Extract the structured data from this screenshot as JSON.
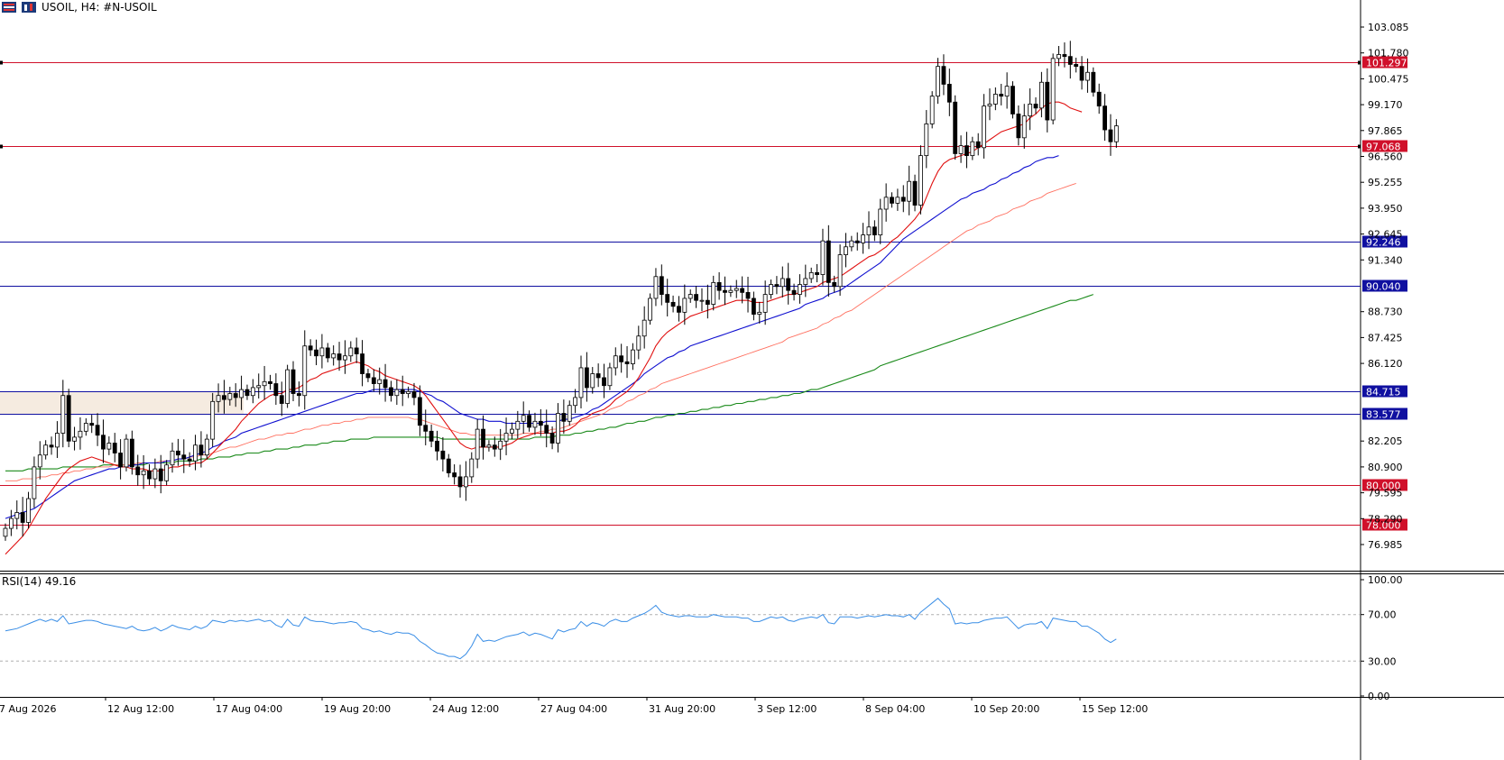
{
  "header": {
    "title": "USOIL, H4:  #N-USOIL"
  },
  "colors": {
    "candle_up_body": "#ffffff",
    "candle_down_body": "#000000",
    "ema_fast": "#e01010",
    "ema_mid": "#1010d0",
    "ema_slow": "#ff7060",
    "ema_long": "#1a8a1a",
    "resistance_line": "#d0102a",
    "support_line": "#1010a0",
    "zone_fill": "#f5ebe0",
    "rsi_line": "#3a8ee6"
  },
  "chart_data": [
    {
      "type": "candlestick",
      "title": "USOIL, H4:  #N-USOIL",
      "ylim": [
        75.7,
        103.0
      ],
      "ytick_labels": [
        "103.085",
        "101.780",
        "100.475",
        "99.170",
        "97.865",
        "96.560",
        "95.255",
        "93.950",
        "92.645",
        "91.340",
        "88.730",
        "87.425",
        "86.120",
        "82.205",
        "80.900",
        "79.595",
        "78.290",
        "76.985"
      ],
      "xtick_labels": [
        "7 Aug 2026",
        "12 Aug 12:00",
        "17 Aug 04:00",
        "19 Aug 20:00",
        "24 Aug 12:00",
        "27 Aug 04:00",
        "31 Aug 20:00",
        "3 Sep 12:00",
        "8 Sep 04:00",
        "10 Sep 20:00",
        "15 Sep 12:00"
      ],
      "horizontal_levels": [
        {
          "value": 101.297,
          "label": "101.297",
          "kind": "resistance"
        },
        {
          "value": 97.068,
          "label": "97.068",
          "kind": "resistance"
        },
        {
          "value": 92.246,
          "label": "92.246",
          "kind": "support"
        },
        {
          "value": 90.04,
          "label": "90.040",
          "kind": "support"
        },
        {
          "value": 84.715,
          "label": "84.715",
          "kind": "support"
        },
        {
          "value": 83.577,
          "label": "83.577",
          "kind": "support"
        },
        {
          "value": 80.0,
          "label": "80.000",
          "kind": "resistance"
        },
        {
          "value": 78.0,
          "label": "78.000",
          "kind": "resistance"
        }
      ],
      "zone": {
        "from": 83.577,
        "to": 84.715
      },
      "close": [
        77.8,
        78.3,
        78.6,
        78.1,
        79.3,
        80.9,
        81.5,
        82.0,
        81.9,
        82.6,
        84.5,
        82.2,
        82.4,
        82.7,
        83.1,
        83.0,
        82.5,
        81.8,
        82.1,
        81.6,
        80.9,
        82.3,
        80.9,
        80.5,
        80.7,
        80.3,
        80.8,
        80.2,
        81.0,
        81.7,
        81.5,
        81.3,
        81.2,
        82.0,
        81.5,
        82.3,
        84.2,
        84.5,
        84.3,
        84.6,
        84.4,
        84.8,
        84.5,
        84.9,
        85.0,
        85.2,
        85.1,
        84.5,
        84.1,
        85.8,
        84.6,
        84.5,
        87.0,
        86.8,
        86.5,
        86.9,
        86.4,
        86.6,
        86.3,
        86.5,
        86.9,
        86.6,
        85.6,
        85.4,
        85.1,
        85.3,
        84.9,
        84.5,
        84.8,
        84.6,
        84.7,
        84.4,
        83.0,
        82.7,
        82.2,
        81.7,
        81.3,
        80.6,
        80.4,
        79.9,
        80.4,
        81.3,
        82.8,
        81.9,
        82.0,
        81.8,
        82.2,
        82.6,
        82.8,
        83.2,
        83.5,
        82.9,
        83.2,
        83.0,
        82.6,
        82.1,
        83.6,
        83.2,
        84.0,
        84.4,
        85.9,
        84.9,
        85.6,
        85.4,
        85.0,
        85.9,
        86.5,
        86.2,
        86.1,
        86.8,
        87.5,
        88.3,
        89.4,
        90.5,
        89.6,
        89.2,
        89.0,
        88.7,
        89.4,
        89.6,
        89.3,
        89.3,
        89.1,
        90.2,
        89.8,
        89.7,
        89.8,
        89.9,
        89.7,
        89.4,
        88.6,
        88.7,
        89.6,
        90.1,
        90.0,
        90.4,
        89.8,
        89.6,
        90.1,
        90.4,
        90.7,
        90.6,
        92.3,
        90.2,
        90.0,
        91.6,
        92.0,
        92.3,
        92.2,
        92.6,
        93.0,
        92.6,
        93.9,
        94.5,
        94.2,
        94.5,
        94.3,
        95.3,
        94.1,
        96.6,
        98.2,
        99.6,
        101.1,
        100.2,
        99.3,
        96.7,
        97.1,
        96.6,
        97.3,
        97.0,
        99.1,
        99.2,
        99.7,
        99.6,
        100.1,
        98.7,
        97.5,
        98.6,
        99.2,
        99.0,
        100.3,
        98.4,
        101.5,
        101.7,
        101.6,
        101.2,
        101.1,
        100.4,
        100.8,
        99.8,
        99.1,
        97.9,
        97.3,
        98.1
      ],
      "ema_fast": [
        76.5,
        76.8,
        77.1,
        77.4,
        77.8,
        78.3,
        78.8,
        79.3,
        79.7,
        80.1,
        80.5,
        80.8,
        81.0,
        81.2,
        81.3,
        81.4,
        81.3,
        81.2,
        81.1,
        81.0,
        80.9,
        80.9,
        80.8,
        80.8,
        80.8,
        80.7,
        80.7,
        80.7,
        80.8,
        80.9,
        80.9,
        81.0,
        81.0,
        81.1,
        81.1,
        81.3,
        81.6,
        81.9,
        82.2,
        82.5,
        82.8,
        83.2,
        83.5,
        83.8,
        84.1,
        84.3,
        84.5,
        84.6,
        84.6,
        84.8,
        84.8,
        84.9,
        85.1,
        85.3,
        85.4,
        85.6,
        85.7,
        85.8,
        85.9,
        86.0,
        86.1,
        86.2,
        86.1,
        86.0,
        85.8,
        85.7,
        85.5,
        85.4,
        85.3,
        85.2,
        85.1,
        85.0,
        84.8,
        84.5,
        84.1,
        83.7,
        83.3,
        82.9,
        82.5,
        82.1,
        81.9,
        81.8,
        81.9,
        81.9,
        81.9,
        81.9,
        81.9,
        82.0,
        82.1,
        82.3,
        82.4,
        82.5,
        82.6,
        82.6,
        82.6,
        82.6,
        82.7,
        82.7,
        82.8,
        83.0,
        83.3,
        83.4,
        83.6,
        83.7,
        83.8,
        84.0,
        84.3,
        84.5,
        84.7,
        85.0,
        85.4,
        85.9,
        86.4,
        87.0,
        87.4,
        87.7,
        87.9,
        88.1,
        88.3,
        88.5,
        88.6,
        88.7,
        88.8,
        88.9,
        89.0,
        89.1,
        89.2,
        89.3,
        89.3,
        89.3,
        89.2,
        89.2,
        89.2,
        89.3,
        89.4,
        89.5,
        89.6,
        89.6,
        89.7,
        89.8,
        89.9,
        90.0,
        90.2,
        90.3,
        90.4,
        90.5,
        90.7,
        90.9,
        91.1,
        91.3,
        91.5,
        91.6,
        91.8,
        92.0,
        92.3,
        92.5,
        92.8,
        93.1,
        93.4,
        93.8,
        94.5,
        95.2,
        95.8,
        96.2,
        96.4,
        96.5,
        96.6,
        96.7,
        96.8,
        97.0,
        97.2,
        97.4,
        97.6,
        97.8,
        97.9,
        98.0,
        98.1,
        98.2,
        98.5,
        98.7,
        99.0,
        99.2,
        99.3,
        99.3,
        99.2,
        99.0,
        98.9,
        98.8
      ],
      "ema_mid": [
        78.3,
        78.4,
        78.5,
        78.6,
        78.7,
        78.8,
        79.0,
        79.2,
        79.4,
        79.6,
        79.8,
        80.0,
        80.2,
        80.3,
        80.4,
        80.5,
        80.6,
        80.7,
        80.8,
        80.8,
        80.9,
        80.9,
        81.0,
        81.0,
        81.1,
        81.1,
        81.1,
        81.1,
        81.2,
        81.2,
        81.3,
        81.3,
        81.4,
        81.5,
        81.6,
        81.7,
        81.9,
        82.0,
        82.2,
        82.3,
        82.4,
        82.6,
        82.7,
        82.8,
        82.9,
        83.0,
        83.1,
        83.2,
        83.3,
        83.4,
        83.5,
        83.6,
        83.7,
        83.8,
        83.9,
        84.0,
        84.1,
        84.2,
        84.3,
        84.4,
        84.5,
        84.6,
        84.6,
        84.7,
        84.8,
        84.8,
        84.8,
        84.8,
        84.8,
        84.8,
        84.8,
        84.8,
        84.7,
        84.6,
        84.5,
        84.3,
        84.2,
        84.0,
        83.8,
        83.6,
        83.5,
        83.4,
        83.3,
        83.3,
        83.2,
        83.2,
        83.2,
        83.1,
        83.1,
        83.1,
        83.1,
        83.1,
        83.1,
        83.1,
        83.2,
        83.2,
        83.2,
        83.3,
        83.3,
        83.4,
        83.5,
        83.6,
        83.8,
        83.9,
        84.1,
        84.3,
        84.5,
        84.7,
        84.9,
        85.1,
        85.3,
        85.6,
        85.8,
        86.0,
        86.2,
        86.4,
        86.5,
        86.7,
        86.8,
        87.0,
        87.1,
        87.2,
        87.3,
        87.4,
        87.5,
        87.6,
        87.7,
        87.8,
        87.9,
        88.0,
        88.1,
        88.2,
        88.3,
        88.4,
        88.5,
        88.6,
        88.7,
        88.8,
        88.9,
        89.1,
        89.2,
        89.3,
        89.4,
        89.6,
        89.7,
        89.8,
        90.0,
        90.2,
        90.4,
        90.6,
        90.8,
        91.0,
        91.2,
        91.5,
        91.8,
        92.1,
        92.4,
        92.6,
        92.8,
        93.0,
        93.2,
        93.4,
        93.6,
        93.8,
        94.0,
        94.2,
        94.4,
        94.5,
        94.7,
        94.8,
        94.9,
        95.1,
        95.2,
        95.4,
        95.5,
        95.7,
        95.8,
        96.0,
        96.1,
        96.3,
        96.4,
        96.5,
        96.5,
        96.6
      ],
      "ema_slow": [
        80.2,
        80.2,
        80.2,
        80.3,
        80.3,
        80.3,
        80.4,
        80.4,
        80.5,
        80.5,
        80.6,
        80.6,
        80.7,
        80.7,
        80.8,
        80.8,
        80.9,
        80.9,
        80.9,
        81.0,
        81.0,
        81.0,
        81.0,
        81.1,
        81.1,
        81.1,
        81.1,
        81.2,
        81.2,
        81.2,
        81.3,
        81.3,
        81.4,
        81.4,
        81.5,
        81.5,
        81.6,
        81.7,
        81.8,
        81.9,
        81.9,
        82.0,
        82.1,
        82.2,
        82.3,
        82.3,
        82.4,
        82.5,
        82.5,
        82.6,
        82.6,
        82.7,
        82.8,
        82.8,
        82.9,
        83.0,
        83.0,
        83.1,
        83.1,
        83.2,
        83.2,
        83.3,
        83.3,
        83.4,
        83.4,
        83.4,
        83.4,
        83.4,
        83.4,
        83.4,
        83.4,
        83.3,
        83.3,
        83.2,
        83.1,
        83.0,
        82.9,
        82.8,
        82.7,
        82.6,
        82.6,
        82.5,
        82.5,
        82.5,
        82.5,
        82.5,
        82.5,
        82.5,
        82.5,
        82.5,
        82.6,
        82.6,
        82.6,
        82.7,
        82.7,
        82.8,
        82.8,
        82.9,
        83.0,
        83.1,
        83.2,
        83.3,
        83.4,
        83.5,
        83.6,
        83.8,
        83.9,
        84.0,
        84.2,
        84.3,
        84.5,
        84.6,
        84.8,
        84.9,
        85.1,
        85.2,
        85.3,
        85.4,
        85.5,
        85.6,
        85.7,
        85.8,
        85.9,
        86.0,
        86.1,
        86.2,
        86.3,
        86.4,
        86.5,
        86.6,
        86.7,
        86.8,
        86.9,
        87.0,
        87.1,
        87.2,
        87.4,
        87.5,
        87.6,
        87.7,
        87.8,
        87.9,
        88.1,
        88.2,
        88.4,
        88.5,
        88.7,
        88.8,
        89.0,
        89.2,
        89.4,
        89.6,
        89.8,
        90.0,
        90.2,
        90.4,
        90.6,
        90.8,
        91.0,
        91.2,
        91.4,
        91.6,
        91.8,
        92.0,
        92.2,
        92.4,
        92.6,
        92.8,
        92.9,
        93.1,
        93.2,
        93.3,
        93.5,
        93.6,
        93.7,
        93.9,
        94.0,
        94.1,
        94.3,
        94.4,
        94.5,
        94.7,
        94.8,
        94.9,
        95.0,
        95.1,
        95.2
      ],
      "ema_long": [
        80.7,
        80.7,
        80.7,
        80.7,
        80.8,
        80.8,
        80.8,
        80.8,
        80.8,
        80.8,
        80.9,
        80.9,
        80.9,
        80.9,
        80.9,
        80.9,
        80.9,
        81.0,
        81.0,
        81.0,
        81.0,
        81.0,
        81.0,
        81.0,
        81.0,
        81.1,
        81.1,
        81.1,
        81.1,
        81.1,
        81.2,
        81.2,
        81.2,
        81.2,
        81.3,
        81.3,
        81.3,
        81.4,
        81.4,
        81.4,
        81.5,
        81.5,
        81.6,
        81.6,
        81.6,
        81.7,
        81.7,
        81.8,
        81.8,
        81.8,
        81.9,
        81.9,
        82.0,
        82.0,
        82.0,
        82.1,
        82.1,
        82.2,
        82.2,
        82.2,
        82.3,
        82.3,
        82.3,
        82.3,
        82.4,
        82.4,
        82.4,
        82.4,
        82.4,
        82.4,
        82.4,
        82.4,
        82.4,
        82.4,
        82.4,
        82.4,
        82.3,
        82.3,
        82.3,
        82.3,
        82.3,
        82.3,
        82.3,
        82.3,
        82.3,
        82.3,
        82.3,
        82.3,
        82.3,
        82.3,
        82.3,
        82.3,
        82.4,
        82.4,
        82.4,
        82.4,
        82.5,
        82.5,
        82.5,
        82.6,
        82.6,
        82.7,
        82.7,
        82.8,
        82.8,
        82.9,
        82.9,
        83.0,
        83.1,
        83.1,
        83.2,
        83.2,
        83.3,
        83.4,
        83.4,
        83.5,
        83.5,
        83.6,
        83.6,
        83.7,
        83.7,
        83.8,
        83.8,
        83.9,
        83.9,
        84.0,
        84.0,
        84.1,
        84.1,
        84.2,
        84.2,
        84.3,
        84.3,
        84.4,
        84.4,
        84.5,
        84.5,
        84.6,
        84.6,
        84.7,
        84.8,
        84.8,
        84.9,
        85.0,
        85.1,
        85.2,
        85.3,
        85.4,
        85.5,
        85.6,
        85.7,
        85.8,
        86.0,
        86.1,
        86.2,
        86.3,
        86.4,
        86.5,
        86.6,
        86.7,
        86.8,
        86.9,
        87.0,
        87.1,
        87.2,
        87.3,
        87.4,
        87.5,
        87.6,
        87.7,
        87.8,
        87.9,
        88.0,
        88.1,
        88.2,
        88.3,
        88.4,
        88.5,
        88.6,
        88.7,
        88.8,
        88.9,
        89.0,
        89.1,
        89.2,
        89.3,
        89.3,
        89.4,
        89.5,
        89.6
      ]
    },
    {
      "type": "line",
      "title": "RSI(14) 49.16",
      "ylim": [
        0,
        100
      ],
      "ytick_labels": [
        "100.00",
        "70.00",
        "30.00",
        "0.00"
      ],
      "dashed_levels": [
        70,
        30
      ],
      "values": [
        56,
        57,
        58,
        60,
        62,
        64,
        66,
        64,
        66,
        64,
        69,
        62,
        63,
        64,
        65,
        65,
        64,
        62,
        61,
        60,
        59,
        58,
        60,
        57,
        56,
        57,
        59,
        56,
        58,
        61,
        59,
        58,
        57,
        60,
        58,
        60,
        65,
        64,
        63,
        65,
        64,
        65,
        64,
        65,
        66,
        64,
        65,
        61,
        59,
        66,
        61,
        60,
        68,
        65,
        64,
        64,
        63,
        62,
        63,
        63,
        64,
        63,
        58,
        57,
        55,
        56,
        54,
        53,
        55,
        54,
        54,
        52,
        47,
        44,
        40,
        37,
        36,
        34,
        34,
        32,
        36,
        43,
        53,
        47,
        48,
        47,
        49,
        51,
        52,
        53,
        55,
        52,
        54,
        53,
        51,
        49,
        57,
        55,
        57,
        58,
        64,
        60,
        63,
        62,
        60,
        64,
        66,
        64,
        64,
        67,
        69,
        71,
        74,
        78,
        72,
        70,
        69,
        68,
        69,
        69,
        68,
        68,
        68,
        70,
        69,
        68,
        68,
        68,
        67,
        67,
        64,
        64,
        66,
        68,
        67,
        68,
        65,
        64,
        66,
        67,
        68,
        67,
        70,
        63,
        62,
        68,
        68,
        68,
        67,
        68,
        69,
        68,
        69,
        70,
        69,
        69,
        68,
        70,
        66,
        72,
        76,
        80,
        84,
        79,
        75,
        62,
        63,
        62,
        63,
        63,
        65,
        66,
        67,
        67,
        68,
        63,
        58,
        61,
        62,
        62,
        64,
        58,
        67,
        66,
        65,
        64,
        64,
        60,
        60,
        57,
        54,
        49,
        46,
        49
      ]
    }
  ]
}
